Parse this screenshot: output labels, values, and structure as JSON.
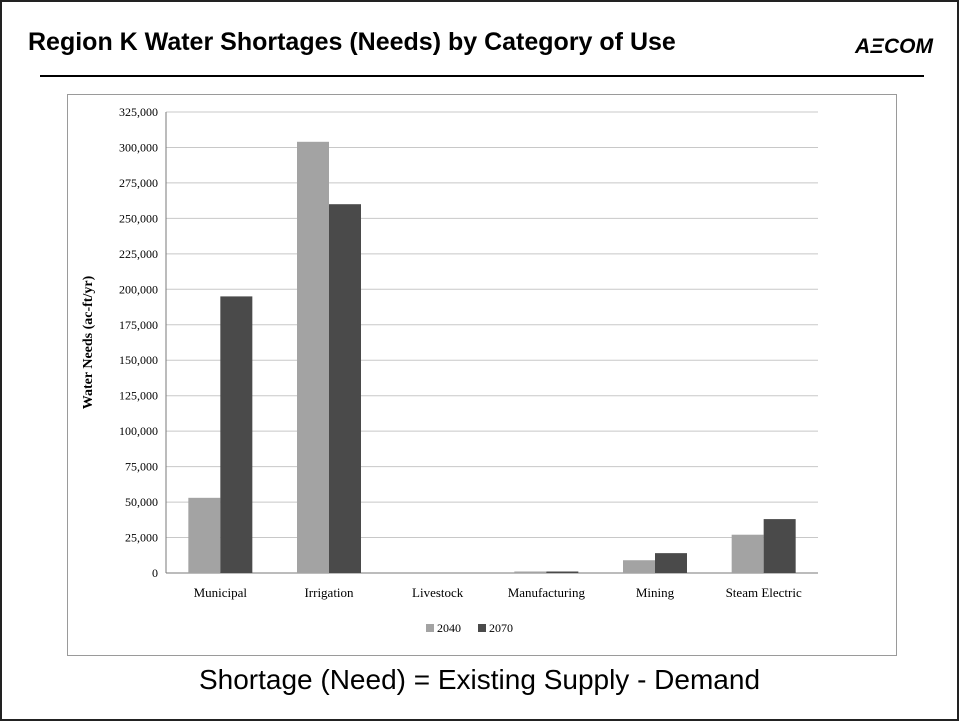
{
  "slide": {
    "title": "Region K Water Shortages (Needs) by Category of Use",
    "logo_text": "AΞCOM",
    "formula": "Shortage (Need) =  Existing Supply - Demand"
  },
  "chart_data": {
    "type": "bar",
    "title": "",
    "xlabel": "",
    "ylabel": "Water Needs (ac-ft/yr)",
    "ylim": [
      0,
      325000
    ],
    "yticks": [
      0,
      25000,
      50000,
      75000,
      100000,
      125000,
      150000,
      175000,
      200000,
      225000,
      250000,
      275000,
      300000,
      325000
    ],
    "ytick_labels": [
      "0",
      "25,000",
      "50,000",
      "75,000",
      "100,000",
      "125,000",
      "150,000",
      "175,000",
      "200,000",
      "225,000",
      "250,000",
      "275,000",
      "300,000",
      "325,000"
    ],
    "grid": true,
    "legend_position": "bottom",
    "categories": [
      "Municipal",
      "Irrigation",
      "Livestock",
      "Manufacturing",
      "Mining",
      "Steam Electric"
    ],
    "series": [
      {
        "name": "2040",
        "color": "#a3a3a3",
        "values": [
          53000,
          304000,
          0,
          700,
          9000,
          27000
        ]
      },
      {
        "name": "2070",
        "color": "#4a4a4a",
        "values": [
          195000,
          260000,
          0,
          900,
          14000,
          38000
        ]
      }
    ]
  }
}
